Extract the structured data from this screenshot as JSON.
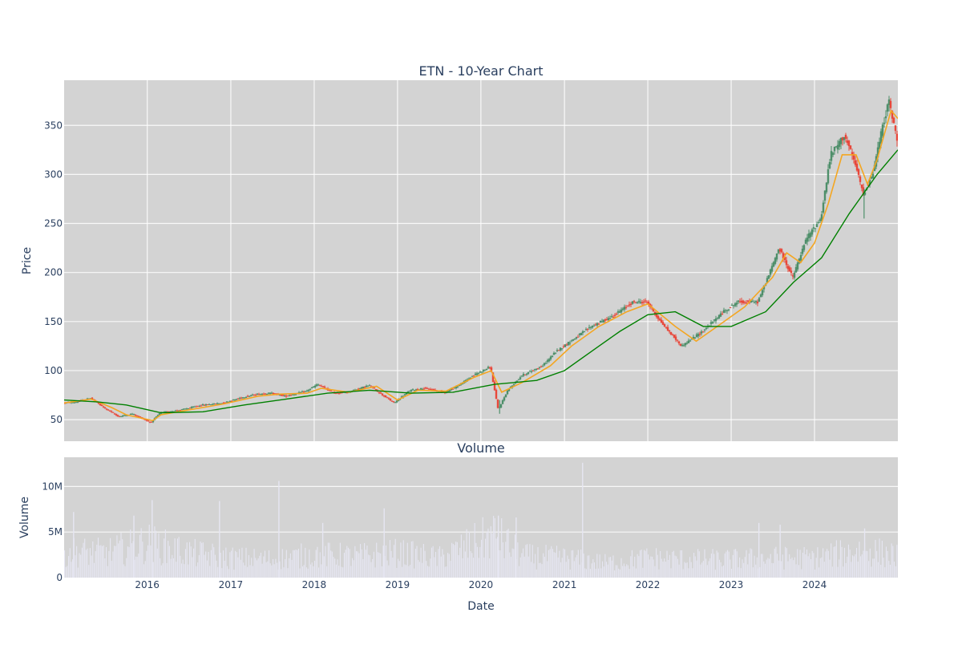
{
  "chart_data": [
    {
      "type": "candlestick",
      "title": "ETN - 10-Year Chart",
      "ylabel": "Price",
      "xlabel": "",
      "ylim": [
        28,
        396
      ],
      "xlim": [
        "2015-01-02",
        "2024-12-31"
      ],
      "yticks": [
        50,
        100,
        150,
        200,
        250,
        300,
        350
      ],
      "ytick_labels": [
        "50",
        "100",
        "150",
        "200",
        "250",
        "300",
        "350"
      ],
      "xticks": [
        "2016-01-01",
        "2017-01-01",
        "2018-01-01",
        "2019-01-01",
        "2020-01-01",
        "2021-01-01",
        "2022-01-01",
        "2023-01-01",
        "2024-01-01"
      ],
      "grid": true,
      "legend": "none",
      "colors": {
        "increasing": "#4e8f6a",
        "decreasing": "#e8473a",
        "ma_short": "#f4a621",
        "ma_long": "#008000",
        "plot_bg": "#d3d3d3"
      },
      "series": [
        {
          "kind": "price",
          "points": [
            [
              "2015-01-02",
              67
            ],
            [
              "2015-03-01",
              68
            ],
            [
              "2015-05-01",
              72
            ],
            [
              "2015-07-01",
              62
            ],
            [
              "2015-09-01",
              53
            ],
            [
              "2015-11-01",
              56
            ],
            [
              "2016-01-20",
              47
            ],
            [
              "2016-03-01",
              57
            ],
            [
              "2016-06-01",
              60
            ],
            [
              "2016-09-01",
              65
            ],
            [
              "2016-12-01",
              67
            ],
            [
              "2017-03-01",
              73
            ],
            [
              "2017-05-01",
              76
            ],
            [
              "2017-07-01",
              77
            ],
            [
              "2017-09-01",
              74
            ],
            [
              "2017-12-01",
              79
            ],
            [
              "2018-01-20",
              86
            ],
            [
              "2018-04-01",
              77
            ],
            [
              "2018-06-01",
              78
            ],
            [
              "2018-09-01",
              85
            ],
            [
              "2018-12-20",
              67
            ],
            [
              "2019-03-01",
              80
            ],
            [
              "2019-05-01",
              82
            ],
            [
              "2019-08-01",
              78
            ],
            [
              "2019-10-01",
              85
            ],
            [
              "2019-12-01",
              95
            ],
            [
              "2020-02-15",
              104
            ],
            [
              "2020-03-20",
              60
            ],
            [
              "2020-05-01",
              80
            ],
            [
              "2020-07-01",
              95
            ],
            [
              "2020-10-01",
              105
            ],
            [
              "2020-12-01",
              120
            ],
            [
              "2021-02-01",
              130
            ],
            [
              "2021-05-01",
              145
            ],
            [
              "2021-08-01",
              155
            ],
            [
              "2021-11-01",
              170
            ],
            [
              "2022-01-01",
              170
            ],
            [
              "2022-03-01",
              150
            ],
            [
              "2022-06-01",
              125
            ],
            [
              "2022-09-01",
              140
            ],
            [
              "2022-12-01",
              160
            ],
            [
              "2023-02-01",
              170
            ],
            [
              "2023-05-01",
              170
            ],
            [
              "2023-07-01",
              205
            ],
            [
              "2023-08-01",
              225
            ],
            [
              "2023-10-01",
              195
            ],
            [
              "2023-12-01",
              235
            ],
            [
              "2024-02-01",
              255
            ],
            [
              "2024-03-15",
              320
            ],
            [
              "2024-05-15",
              340
            ],
            [
              "2024-07-01",
              310
            ],
            [
              "2024-08-05",
              280
            ],
            [
              "2024-09-15",
              300
            ],
            [
              "2024-10-20",
              340
            ],
            [
              "2024-11-25",
              375
            ],
            [
              "2024-12-31",
              335
            ]
          ]
        },
        {
          "kind": "moving_average_short",
          "points": [
            [
              "2015-01-02",
              67
            ],
            [
              "2015-05-01",
              71
            ],
            [
              "2015-08-01",
              62
            ],
            [
              "2015-10-01",
              55
            ],
            [
              "2016-01-25",
              49
            ],
            [
              "2016-03-01",
              55
            ],
            [
              "2016-07-01",
              60
            ],
            [
              "2016-12-01",
              66
            ],
            [
              "2017-05-01",
              74
            ],
            [
              "2017-08-01",
              76
            ],
            [
              "2017-12-01",
              77
            ],
            [
              "2018-02-01",
              82
            ],
            [
              "2018-06-01",
              78
            ],
            [
              "2018-10-01",
              84
            ],
            [
              "2019-01-01",
              70
            ],
            [
              "2019-04-01",
              80
            ],
            [
              "2019-08-01",
              79
            ],
            [
              "2019-12-01",
              93
            ],
            [
              "2020-02-15",
              100
            ],
            [
              "2020-04-01",
              78
            ],
            [
              "2020-07-01",
              88
            ],
            [
              "2020-11-01",
              105
            ],
            [
              "2021-02-01",
              125
            ],
            [
              "2021-06-01",
              145
            ],
            [
              "2021-10-01",
              160
            ],
            [
              "2022-01-01",
              168
            ],
            [
              "2022-05-01",
              145
            ],
            [
              "2022-08-01",
              130
            ],
            [
              "2022-11-01",
              145
            ],
            [
              "2023-03-01",
              165
            ],
            [
              "2023-07-01",
              195
            ],
            [
              "2023-09-01",
              220
            ],
            [
              "2023-11-01",
              210
            ],
            [
              "2024-01-01",
              230
            ],
            [
              "2024-03-01",
              270
            ],
            [
              "2024-05-01",
              320
            ],
            [
              "2024-07-01",
              320
            ],
            [
              "2024-08-20",
              290
            ],
            [
              "2024-10-01",
              315
            ],
            [
              "2024-12-01",
              365
            ],
            [
              "2024-12-31",
              357
            ]
          ]
        },
        {
          "kind": "moving_average_long",
          "points": [
            [
              "2015-01-02",
              70
            ],
            [
              "2015-06-01",
              68
            ],
            [
              "2015-10-01",
              65
            ],
            [
              "2016-03-01",
              57
            ],
            [
              "2016-09-01",
              58
            ],
            [
              "2017-03-01",
              65
            ],
            [
              "2017-09-01",
              71
            ],
            [
              "2018-03-01",
              77
            ],
            [
              "2018-09-01",
              80
            ],
            [
              "2019-03-01",
              77
            ],
            [
              "2019-09-01",
              78
            ],
            [
              "2020-03-01",
              86
            ],
            [
              "2020-09-01",
              90
            ],
            [
              "2021-01-01",
              100
            ],
            [
              "2021-06-01",
              125
            ],
            [
              "2021-09-01",
              140
            ],
            [
              "2022-01-01",
              157
            ],
            [
              "2022-05-01",
              160
            ],
            [
              "2022-09-01",
              145
            ],
            [
              "2023-01-01",
              145
            ],
            [
              "2023-06-01",
              160
            ],
            [
              "2023-10-01",
              190
            ],
            [
              "2024-02-01",
              215
            ],
            [
              "2024-06-01",
              260
            ],
            [
              "2024-10-01",
              300
            ],
            [
              "2024-12-31",
              325
            ]
          ]
        }
      ]
    },
    {
      "type": "bar",
      "title": "Volume",
      "xlabel": "Date",
      "ylabel": "Volume",
      "ylim": [
        0,
        13200000
      ],
      "yticks": [
        0,
        5000000,
        10000000
      ],
      "ytick_labels": [
        "0",
        "5M",
        "10M"
      ],
      "xticks": [
        "2016-01-01",
        "2017-01-01",
        "2018-01-01",
        "2019-01-01",
        "2020-01-01",
        "2021-01-01",
        "2022-01-01",
        "2023-01-01",
        "2024-01-01"
      ],
      "xtick_labels": [
        "2016",
        "2017",
        "2018",
        "2019",
        "2020",
        "2021",
        "2022",
        "2023",
        "2024"
      ],
      "grid": true,
      "colors": {
        "bar": "#e6e6f2",
        "plot_bg": "#d3d3d3"
      },
      "volume_baseline": [
        [
          "2015-01-02",
          3200000
        ],
        [
          "2015-07-01",
          3000000
        ],
        [
          "2016-01-01",
          4200000
        ],
        [
          "2016-07-01",
          3000000
        ],
        [
          "2017-01-01",
          2400000
        ],
        [
          "2017-07-01",
          2200000
        ],
        [
          "2018-01-01",
          2800000
        ],
        [
          "2018-07-01",
          2600000
        ],
        [
          "2019-01-01",
          3000000
        ],
        [
          "2019-07-01",
          2400000
        ],
        [
          "2020-03-01",
          5200000
        ],
        [
          "2020-07-01",
          2600000
        ],
        [
          "2021-01-01",
          2400000
        ],
        [
          "2021-07-01",
          1800000
        ],
        [
          "2022-01-01",
          2400000
        ],
        [
          "2022-07-01",
          2200000
        ],
        [
          "2023-01-01",
          2200000
        ],
        [
          "2023-07-01",
          2400000
        ],
        [
          "2024-01-01",
          2400000
        ],
        [
          "2024-08-01",
          3400000
        ],
        [
          "2024-12-31",
          2600000
        ]
      ],
      "volume_spikes": [
        [
          "2015-02-10",
          7200000
        ],
        [
          "2015-11-01",
          6800000
        ],
        [
          "2016-01-20",
          8500000
        ],
        [
          "2016-11-10",
          8400000
        ],
        [
          "2017-07-28",
          10600000
        ],
        [
          "2018-02-05",
          6000000
        ],
        [
          "2018-11-01",
          7600000
        ],
        [
          "2020-03-15",
          6800000
        ],
        [
          "2020-06-01",
          6600000
        ],
        [
          "2021-03-19",
          12600000
        ],
        [
          "2023-04-30",
          6000000
        ],
        [
          "2023-08-01",
          5800000
        ],
        [
          "2024-08-05",
          5400000
        ]
      ]
    }
  ]
}
